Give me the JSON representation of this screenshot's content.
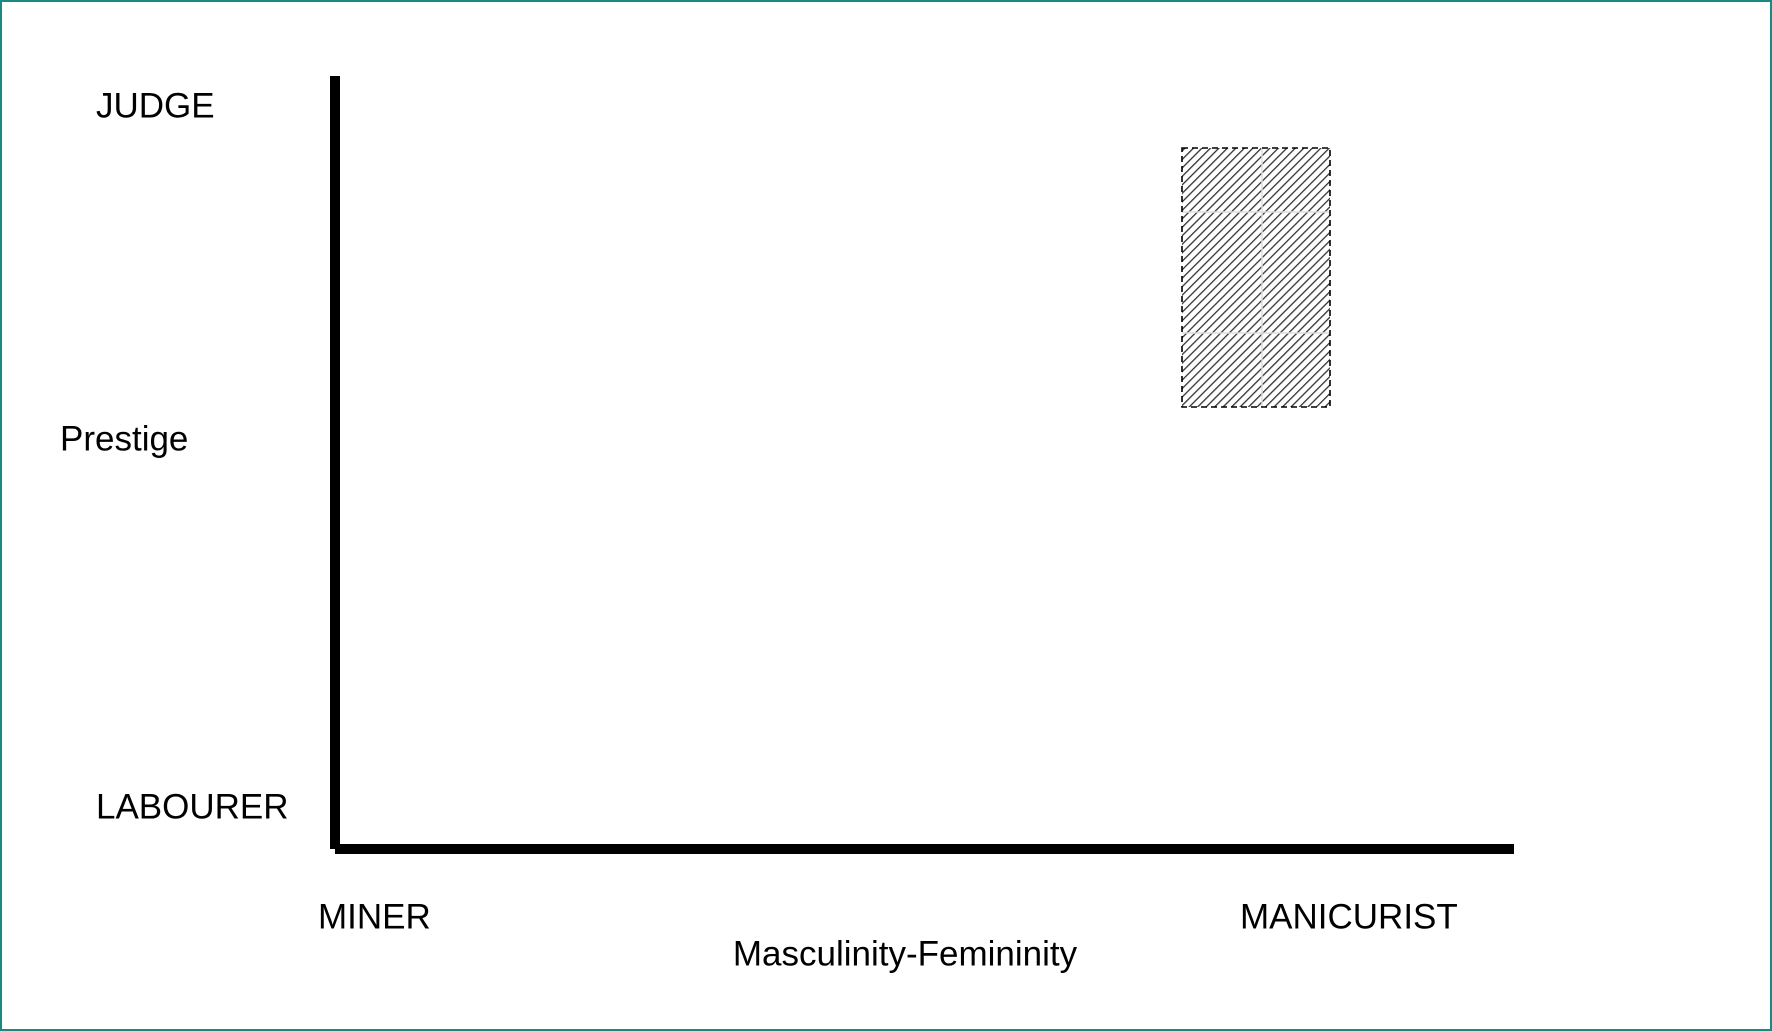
{
  "y_axis": {
    "top_label": "JUDGE",
    "title": "Prestige",
    "bottom_label": "LABOURER"
  },
  "x_axis": {
    "left_label": "MINER",
    "right_label": "MANICURIST",
    "title": "Masculinity-Femininity"
  }
}
